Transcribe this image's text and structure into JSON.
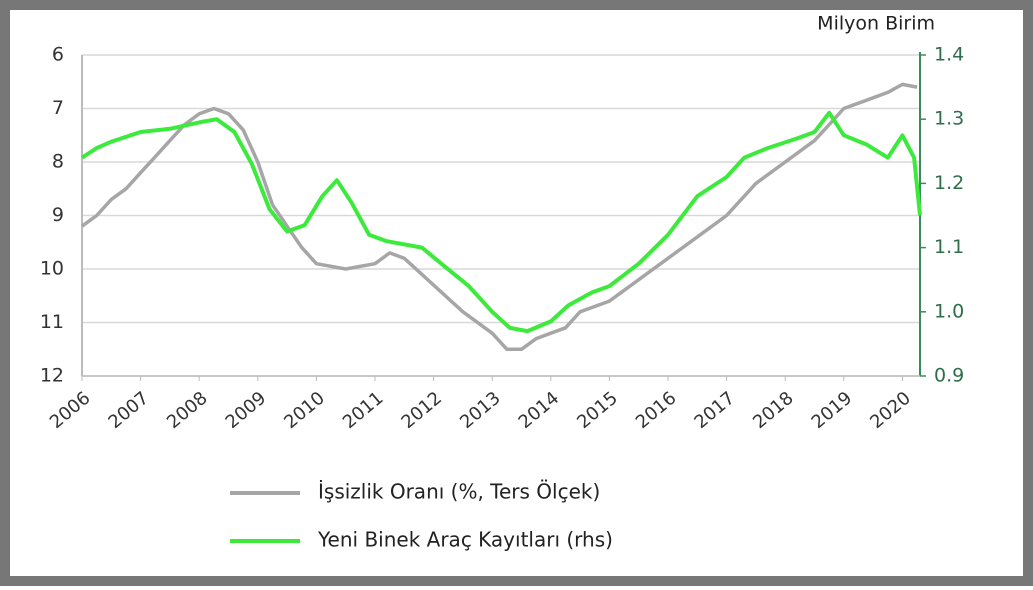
{
  "chart_data": {
    "type": "line",
    "y2_label": "Milyon Birim",
    "xlim": [
      2006,
      2020.3
    ],
    "xticks": [
      2006,
      2007,
      2008,
      2009,
      2010,
      2011,
      2012,
      2013,
      2014,
      2015,
      2016,
      2017,
      2018,
      2019,
      2020
    ],
    "ylim": [
      12,
      6
    ],
    "yticks": [
      6,
      7,
      8,
      9,
      10,
      11,
      12
    ],
    "y2lim": [
      0.9,
      1.4
    ],
    "y2ticks": [
      0.9,
      {
        "value": 1,
        "label": "1.0"
      },
      1.1,
      1.2,
      1.3,
      1.4
    ],
    "grid": true,
    "legend": "bottom",
    "series": [
      {
        "name": "İşsizlik Oranı (%, Ters Ölçek)",
        "color": "#a6a6a6",
        "axis": "y",
        "x": [
          2006,
          2006.25,
          2006.5,
          2006.75,
          2007,
          2007.25,
          2007.5,
          2007.75,
          2008,
          2008.25,
          2008.5,
          2008.75,
          2009,
          2009.25,
          2009.5,
          2009.75,
          2010,
          2010.5,
          2011,
          2011.25,
          2011.5,
          2012,
          2012.5,
          2013,
          2013.25,
          2013.5,
          2013.75,
          2014,
          2014.25,
          2014.5,
          2015,
          2015.5,
          2016,
          2016.5,
          2017,
          2017.5,
          2018,
          2018.5,
          2018.75,
          2019,
          2019.5,
          2019.75,
          2020,
          2020.25
        ],
        "values": [
          9.2,
          9.0,
          8.7,
          8.5,
          8.2,
          7.9,
          7.6,
          7.3,
          7.1,
          7.0,
          7.1,
          7.4,
          8.0,
          8.8,
          9.2,
          9.6,
          9.9,
          10.0,
          9.9,
          9.7,
          9.8,
          10.3,
          10.8,
          11.2,
          11.5,
          11.5,
          11.3,
          11.2,
          11.1,
          10.8,
          10.6,
          10.2,
          9.8,
          9.4,
          9.0,
          8.4,
          8.0,
          7.6,
          7.3,
          7.0,
          6.8,
          6.7,
          6.55,
          6.6
        ]
      },
      {
        "name": "Yeni Binek Araç Kayıtları (rhs)",
        "color": "#3cea3c",
        "axis": "y2",
        "x": [
          2006,
          2006.25,
          2006.5,
          2007,
          2007.5,
          2008,
          2008.3,
          2008.6,
          2008.9,
          2009.2,
          2009.5,
          2009.8,
          2010.1,
          2010.35,
          2010.6,
          2010.9,
          2011.2,
          2011.5,
          2011.8,
          2012.2,
          2012.6,
          2013,
          2013.3,
          2013.6,
          2014,
          2014.3,
          2014.7,
          2015,
          2015.5,
          2016,
          2016.5,
          2017,
          2017.3,
          2017.7,
          2018.2,
          2018.5,
          2018.75,
          2019,
          2019.4,
          2019.75,
          2020,
          2020.2,
          2020.3
        ],
        "values": [
          1.24,
          1.255,
          1.265,
          1.28,
          1.285,
          1.295,
          1.3,
          1.28,
          1.23,
          1.16,
          1.125,
          1.135,
          1.18,
          1.205,
          1.17,
          1.12,
          1.11,
          1.105,
          1.1,
          1.07,
          1.04,
          1.0,
          0.975,
          0.97,
          0.985,
          1.01,
          1.03,
          1.04,
          1.075,
          1.12,
          1.18,
          1.21,
          1.24,
          1.255,
          1.27,
          1.28,
          1.31,
          1.275,
          1.26,
          1.24,
          1.275,
          1.24,
          1.15
        ]
      }
    ]
  }
}
